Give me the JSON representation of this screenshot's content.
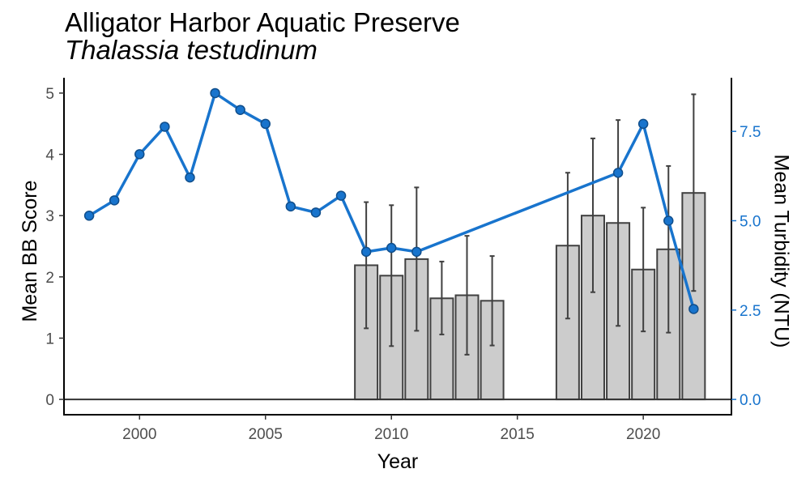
{
  "title": "Alligator Harbor Aquatic Preserve",
  "subtitle": "Thalassia testudinum",
  "colors": {
    "bar_fill": "#cccccc",
    "bar_stroke": "#404040",
    "error_bar": "#404040",
    "line": "#1874cd",
    "point_fill": "#1874cd",
    "point_stroke": "#104e8b",
    "right_axis": "#1874cd",
    "axis": "#000000",
    "tick_text": "#4d4d4d"
  },
  "chart_data": {
    "type": "bar+line",
    "xlabel": "Year",
    "ylabel": "Mean BB Score",
    "y2label": "Mean Turbidity (NTU)",
    "xlim": [
      1997,
      2023.5
    ],
    "xticks": [
      "2000",
      "2005",
      "2010",
      "2015",
      "2020"
    ],
    "ylim": [
      -0.25,
      5.25
    ],
    "yticks": [
      "0",
      "1",
      "2",
      "3",
      "4",
      "5"
    ],
    "y2lim": [
      -0.4286,
      9.0
    ],
    "y2ticks": [
      "0.0",
      "2.5",
      "5.0",
      "7.5"
    ],
    "grid": false,
    "bar_series": {
      "name": "Mean BB Score",
      "years": [
        2009,
        2010,
        2011,
        2012,
        2013,
        2014,
        2017,
        2018,
        2019,
        2020,
        2021,
        2022
      ],
      "values": [
        2.19,
        2.02,
        2.29,
        1.65,
        1.7,
        1.61,
        2.51,
        3.0,
        2.88,
        2.12,
        2.45,
        3.37
      ],
      "error_low": [
        1.16,
        0.87,
        1.12,
        1.06,
        0.73,
        0.88,
        1.32,
        1.75,
        1.2,
        1.11,
        1.09,
        1.77
      ],
      "error_high": [
        3.22,
        3.17,
        3.46,
        2.25,
        2.67,
        2.34,
        3.7,
        4.26,
        4.56,
        3.13,
        3.81,
        4.98
      ]
    },
    "line_series": {
      "name": "Mean Turbidity (NTU)",
      "years": [
        1998,
        1999,
        2000,
        2001,
        2002,
        2003,
        2004,
        2005,
        2006,
        2007,
        2008,
        2009,
        2010,
        2011,
        2019,
        2020,
        2021,
        2022
      ],
      "values": [
        5.14,
        5.57,
        6.86,
        7.63,
        6.21,
        8.57,
        8.1,
        7.71,
        5.4,
        5.23,
        5.7,
        4.13,
        4.24,
        4.13,
        6.34,
        7.71,
        5.0,
        2.53
      ]
    }
  }
}
